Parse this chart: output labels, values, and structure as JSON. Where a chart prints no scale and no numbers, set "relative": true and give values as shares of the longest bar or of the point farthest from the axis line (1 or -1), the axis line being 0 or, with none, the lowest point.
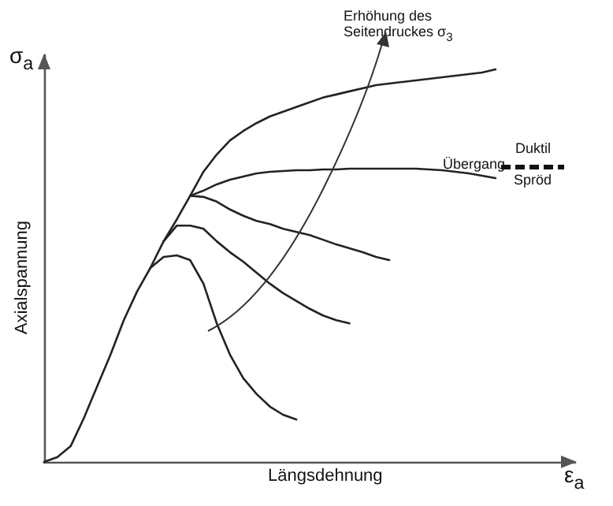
{
  "chart_data": {
    "type": "line",
    "relative": true,
    "xlabel": "Längsdehnung",
    "ylabel": "Axialspannung",
    "marker": "none",
    "line_style": "solid",
    "annotations": [
      "σ$_{a}$",
      "ε$_{a}$",
      "Erhöhung des Seitendruckes σ$_{3}$",
      "Übergang",
      "Duktil",
      "Spröd"
    ],
    "categories": [
      null,
      null,
      null,
      null,
      null,
      null,
      null,
      null,
      null,
      null,
      null,
      null,
      null,
      null,
      null,
      null,
      null,
      null,
      null,
      null,
      null,
      null,
      null,
      null,
      null,
      null,
      null,
      null,
      null,
      null,
      null,
      null,
      null,
      null,
      null,
      null,
      null,
      null,
      null,
      null,
      null
    ],
    "series": [
      {
        "color": "#222222",
        "values": [
          0,
          0.012,
          0.04,
          0.112,
          0.193,
          0.273,
          0.361,
          0.434,
          0.494,
          0.562,
          0.618,
          0.678,
          0.739,
          0.783,
          0.819,
          0.843,
          0.863,
          0.88,
          0.892,
          0.904,
          0.916,
          0.928,
          0.936,
          0.944,
          0.952,
          0.96,
          0.964,
          0.968,
          0.972,
          0.976,
          0.98,
          0.984,
          0.988,
          0.992,
          1,
          null,
          null,
          null,
          null,
          null,
          null
        ]
      },
      {
        "color": "#222222",
        "values": [
          null,
          null,
          null,
          null,
          null,
          null,
          null,
          null,
          null,
          null,
          null,
          0.678,
          0.691,
          0.707,
          0.719,
          0.727,
          0.735,
          0.739,
          0.741,
          0.743,
          0.743,
          0.745,
          0.745,
          0.747,
          0.747,
          0.747,
          0.747,
          0.747,
          0.747,
          0.745,
          0.743,
          0.739,
          0.735,
          0.729,
          0.723,
          null,
          null,
          null,
          null,
          null,
          null
        ]
      },
      {
        "color": "#222222",
        "values": [
          null,
          null,
          null,
          null,
          null,
          null,
          null,
          null,
          null,
          null,
          null,
          0.678,
          0.675,
          0.663,
          0.643,
          0.627,
          0.614,
          0.606,
          0.594,
          0.586,
          0.578,
          0.566,
          0.554,
          0.544,
          0.534,
          0.522,
          0.514,
          null,
          null,
          null,
          null,
          null,
          null,
          null,
          null,
          null,
          null,
          null,
          null,
          null,
          null
        ]
      },
      {
        "color": "#222222",
        "values": [
          null,
          null,
          null,
          null,
          null,
          null,
          null,
          null,
          null,
          0.562,
          0.602,
          0.602,
          0.594,
          0.562,
          0.534,
          0.51,
          0.482,
          0.454,
          0.43,
          0.41,
          0.39,
          0.373,
          0.361,
          0.353,
          null,
          null,
          null,
          null,
          null,
          null,
          null,
          null,
          null,
          null,
          null,
          null,
          null,
          null,
          null,
          null,
          null
        ]
      },
      {
        "color": "#222222",
        "values": [
          null,
          null,
          null,
          null,
          null,
          null,
          null,
          null,
          0.494,
          0.522,
          0.526,
          0.514,
          0.454,
          0.353,
          0.273,
          0.213,
          0.173,
          0.141,
          0.12,
          0.108,
          null,
          null,
          null,
          null,
          null,
          null,
          null,
          null,
          null,
          null,
          null,
          null,
          null,
          null,
          null,
          null,
          null,
          null,
          null,
          null,
          null
        ]
      }
    ]
  }
}
